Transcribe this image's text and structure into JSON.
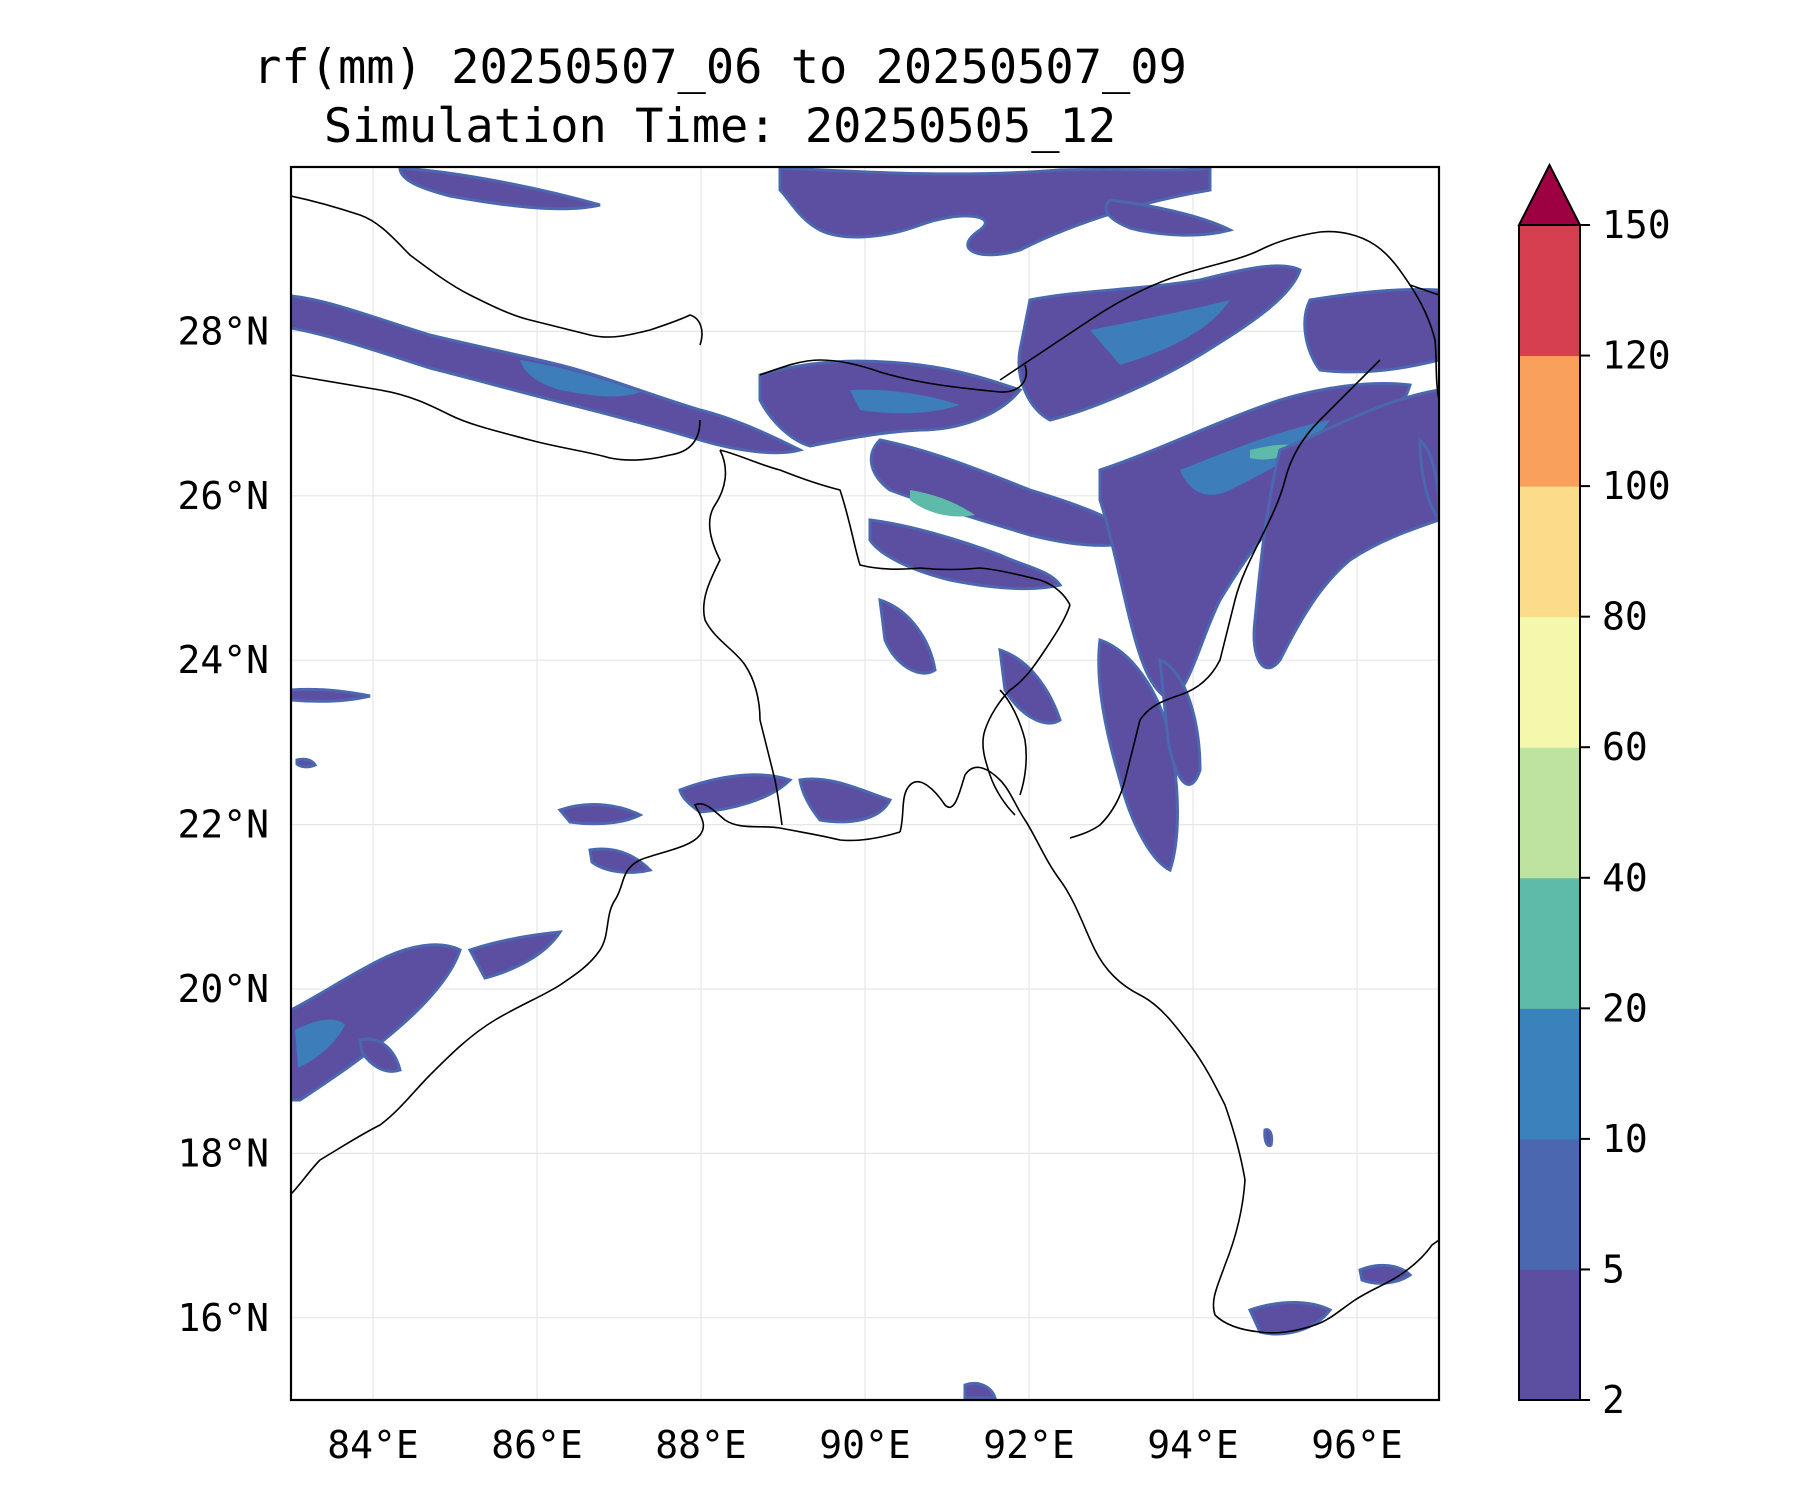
{
  "title": "rf(mm) 20250507_06 to 20250507_09",
  "subtitle": "Simulation Time: 20250505_12",
  "map": {
    "lon_range": [
      83,
      97
    ],
    "lat_range": [
      15,
      30
    ],
    "lon_ticks": [
      84,
      86,
      88,
      90,
      92,
      94,
      96
    ],
    "lat_ticks": [
      16,
      18,
      20,
      22,
      24,
      26,
      28
    ],
    "lon_tick_labels": [
      "84°E",
      "86°E",
      "88°E",
      "90°E",
      "92°E",
      "94°E",
      "96°E"
    ],
    "lat_tick_labels": [
      "16°N",
      "18°N",
      "20°N",
      "22°N",
      "24°N",
      "26°N",
      "28°N"
    ],
    "grid": true
  },
  "colorbar": {
    "levels": [
      2,
      5,
      10,
      20,
      40,
      60,
      80,
      100,
      120,
      150
    ],
    "labels": [
      "2",
      "5",
      "10",
      "20",
      "40",
      "60",
      "80",
      "100",
      "120",
      "150"
    ],
    "colors": [
      "#5c4fa2",
      "#4a67b0",
      "#3a82bb",
      "#5fbba9",
      "#bde3a0",
      "#f3f8ad",
      "#fbdc8b",
      "#f8a05c",
      "#d63f4f"
    ],
    "extend_color": "#9e0142",
    "extend": "max"
  },
  "rain_colors": {
    "light": "#5c4fa2",
    "medium": "#4a67b0",
    "heavy": "#3a82bb",
    "peak": "#5fbba9"
  }
}
